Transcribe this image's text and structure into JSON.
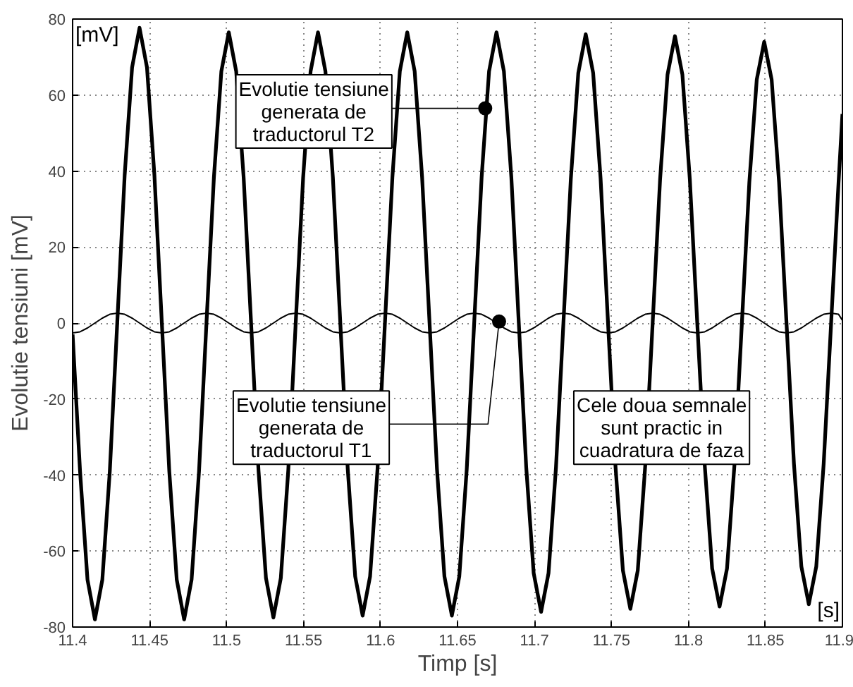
{
  "chart_data": {
    "type": "line",
    "xlabel": "Timp [s]",
    "ylabel": "Evolutie tensiuni [mV]",
    "x": [
      11.4,
      11.40483,
      11.40966,
      11.41449,
      11.41932,
      11.42415,
      11.42898,
      11.43381,
      11.43864,
      11.44347,
      11.4483,
      11.45313,
      11.45796,
      11.46279,
      11.46762,
      11.47245,
      11.47728,
      11.48211,
      11.48694,
      11.49177,
      11.4966,
      11.50143,
      11.50626,
      11.51109,
      11.51592,
      11.52075,
      11.52558,
      11.53041,
      11.53524,
      11.54007,
      11.5449,
      11.54973,
      11.55456,
      11.55939,
      11.56422,
      11.56905,
      11.57388,
      11.57871,
      11.58354,
      11.58837,
      11.5932,
      11.59803,
      11.60286,
      11.60769,
      11.61252,
      11.61735,
      11.62218,
      11.62701,
      11.63184,
      11.63667,
      11.6415,
      11.64633,
      11.65116,
      11.65599,
      11.66082,
      11.66565,
      11.67048,
      11.67531,
      11.68014,
      11.68497,
      11.6898,
      11.69463,
      11.69946,
      11.70429,
      11.70912,
      11.71395,
      11.71878,
      11.72361,
      11.72844,
      11.73327,
      11.7381,
      11.74293,
      11.74776,
      11.75259,
      11.75742,
      11.76225,
      11.76708,
      11.77191,
      11.77674,
      11.78157,
      11.7864,
      11.79123,
      11.79606,
      11.80089,
      11.80572,
      11.81055,
      11.81538,
      11.82021,
      11.82504,
      11.82987,
      11.8347,
      11.83953,
      11.84436,
      11.84919,
      11.85402,
      11.85885,
      11.86368,
      11.86851,
      11.87334,
      11.87817,
      11.883,
      11.88783,
      11.89266,
      11.89749,
      11.9
    ],
    "series": [
      {
        "color": "#000000",
        "values": [
          -3,
          -39,
          -67.5,
          -78,
          -67.5,
          -39,
          0,
          38.9,
          67.3,
          77.7,
          67.3,
          38.9,
          0,
          -39,
          -67.5,
          -78,
          -67.5,
          -39,
          0,
          38.3,
          66.2,
          76.5,
          66.2,
          38.3,
          0,
          -38.8,
          -67.1,
          -77.5,
          -67.1,
          -38.8,
          0,
          38.3,
          66.2,
          76.5,
          66.2,
          38.3,
          0,
          -38.5,
          -66.7,
          -77,
          -66.7,
          -38.5,
          0,
          38.3,
          66.2,
          76.5,
          66.2,
          38.3,
          0,
          -38.5,
          -66.7,
          -77,
          -66.7,
          -38.5,
          0,
          38.3,
          66.2,
          76.5,
          66.2,
          38.3,
          0,
          -38,
          -65.8,
          -76,
          -65.8,
          -38,
          0,
          38,
          65.8,
          76,
          65.8,
          38,
          0,
          -37.6,
          -65.1,
          -75.2,
          -65.1,
          -37.6,
          0,
          37.8,
          65.4,
          75.5,
          65.4,
          37.8,
          0,
          -37.3,
          -64.6,
          -74.6,
          -64.6,
          -37.3,
          0,
          37,
          64.1,
          74,
          64.1,
          37,
          0,
          -37,
          -64.1,
          -74,
          -64.1,
          -37,
          0,
          37,
          55
        ]
      },
      {
        "color": "#000000",
        "values": [
          -2.6,
          -2.3,
          -1.3,
          0,
          1.3,
          2.3,
          2.6,
          2.3,
          1.3,
          0,
          -1.3,
          -2.3,
          -2.6,
          -2.3,
          -1.3,
          0,
          1.3,
          2.3,
          2.6,
          2.3,
          1.3,
          0,
          -1.3,
          -2.3,
          -2.6,
          -2.3,
          -1.3,
          0,
          1.3,
          2.3,
          2.6,
          2.3,
          1.3,
          0,
          -1.3,
          -2.3,
          -2.6,
          -2.3,
          -1.3,
          0,
          1.3,
          2.3,
          2.6,
          2.3,
          1.3,
          0,
          -1.3,
          -2.3,
          -2.6,
          -2.3,
          -1.3,
          0,
          1.3,
          2.3,
          2.6,
          2.3,
          1.3,
          0,
          -1.3,
          -2.3,
          -2.6,
          -2.3,
          -1.3,
          0,
          1.3,
          2.3,
          2.6,
          2.3,
          1.3,
          0,
          -1.3,
          -2.3,
          -2.6,
          -2.3,
          -1.3,
          0,
          1.3,
          2.3,
          2.6,
          2.3,
          1.3,
          0,
          -1.3,
          -2.3,
          -2.6,
          -2.3,
          -1.3,
          0,
          1.3,
          2.3,
          2.6,
          2.3,
          1.3,
          0,
          -1.3,
          -2.3,
          -2.6,
          -2.3,
          -1.3,
          0,
          1.3,
          2.3,
          2.6,
          2.3,
          0.7
        ]
      }
    ],
    "xlim": [
      11.4,
      11.9
    ],
    "ylim": [
      -80,
      80
    ],
    "xticks": [
      11.4,
      11.45,
      11.5,
      11.55,
      11.6,
      11.65,
      11.7,
      11.75,
      11.8,
      11.85,
      11.9
    ],
    "yticks": [
      -80,
      -60,
      -40,
      -20,
      0,
      20,
      40,
      60,
      80
    ],
    "grid": true,
    "marker": "none",
    "line_style": "solid",
    "annotations": [
      {
        "text": "Evolutie tensiune generata de traductorul T2",
        "x": 11.668,
        "y": 56.5
      },
      {
        "text": "Evolutie tensiune generata de traductorul T1",
        "x": 11.677,
        "y": 0.4
      },
      "Cele doua semnale sunt practic in cuadratura de faza",
      "[mV]",
      "[s]"
    ]
  }
}
